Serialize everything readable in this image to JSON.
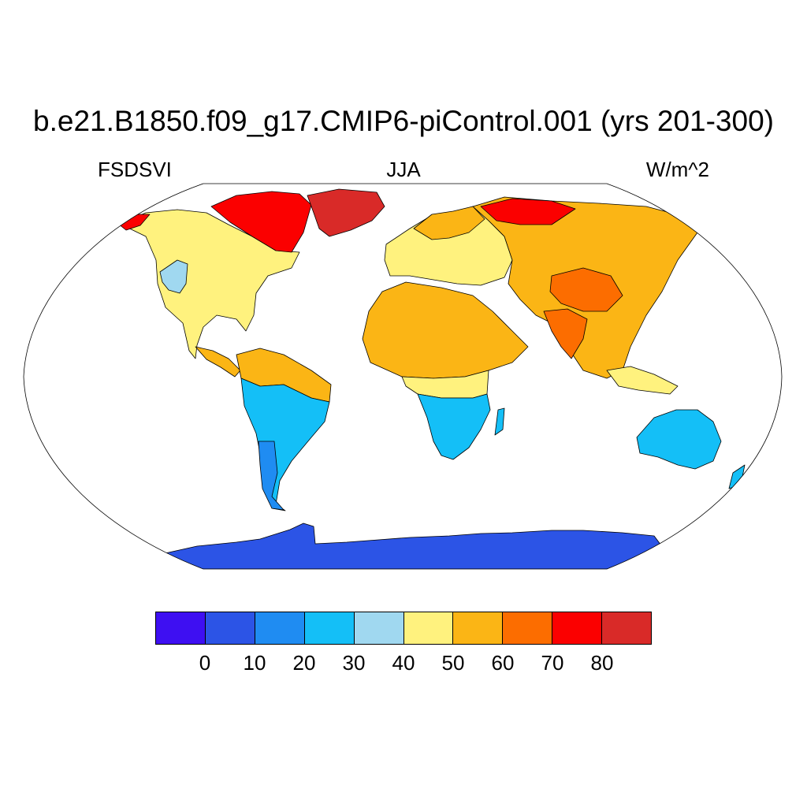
{
  "header": {
    "title": "b.e21.B1850.f09_g17.CMIP6-piControl.001 (yrs 201-300)",
    "variable": "FSDSVI",
    "season": "JJA",
    "units": "W/m^2"
  },
  "legend": {
    "labels": [
      "0",
      "10",
      "20",
      "30",
      "40",
      "50",
      "60",
      "70",
      "80"
    ],
    "colors": [
      "#3e0ff2",
      "#2c54e6",
      "#1f8cf2",
      "#14bff7",
      "#a0d8f0",
      "#fff27e",
      "#fbb515",
      "#fc6d00",
      "#fb0000",
      "#d92a28"
    ]
  },
  "map": {
    "projection": "Robinson",
    "region_colors": {
      "antarctica": "#2c54e6",
      "ocean": "#ffffff",
      "greenland": "#d92a28",
      "arctic_canada": "#fb0000",
      "north_america": "#fff27e",
      "western_us": "#a0d8f0",
      "central_america": "#fbb515",
      "northern_south_america": "#fbb515",
      "southern_south_america": "#14bff7",
      "patagonia": "#1f8cf2",
      "europe": "#fff27e",
      "sahara": "#fbb515",
      "southern_africa": "#14bff7",
      "siberia": "#fbb515",
      "tibet": "#fc6d00",
      "india": "#fc6d00",
      "australia": "#14bff7"
    }
  }
}
